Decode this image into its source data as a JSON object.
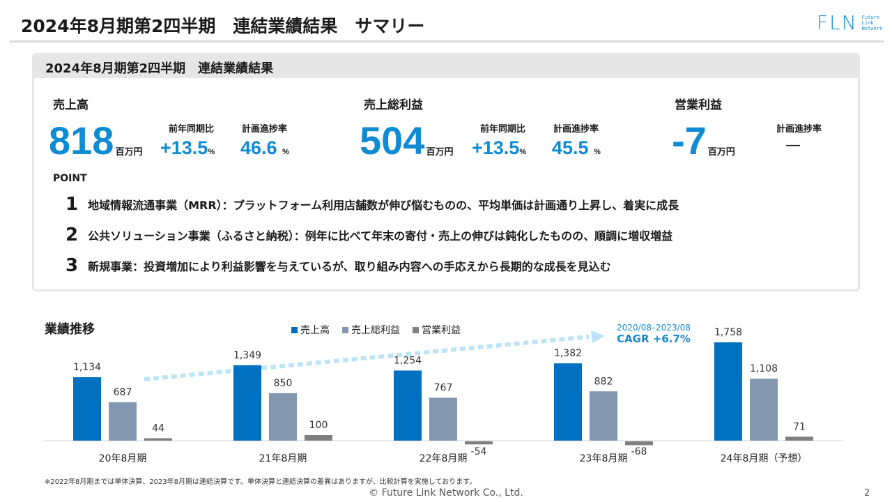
{
  "header": {
    "title": "2024年8月期第2四半期　連結業績結果　サマリー",
    "logo": {
      "mark": "FLN",
      "lines": [
        "Future",
        "Link",
        "Network"
      ]
    }
  },
  "panel": {
    "title": "2024年8月期第2四半期　連結業績結果",
    "metrics": [
      {
        "label": "売上高",
        "value": "818",
        "unit": "百万円",
        "yoy_label": "前年同期比",
        "yoy": "+13.5",
        "yoy_unit": "%",
        "progress_label": "計画進捗率",
        "progress": "46.6",
        "progress_unit": "%"
      },
      {
        "label": "売上総利益",
        "value": "504",
        "unit": "百万円",
        "yoy_label": "前年同期比",
        "yoy": "+13.5",
        "yoy_unit": "%",
        "progress_label": "計画進捗率",
        "progress": "45.5",
        "progress_unit": "%"
      },
      {
        "label": "営業利益",
        "value": "-7",
        "unit": "百万円",
        "progress_label": "計画進捗率",
        "progress": "—"
      }
    ],
    "point_label": "POINT",
    "points": [
      {
        "n": "1",
        "text": "地域情報流通事業（MRR）：プラットフォーム利用店舗数が伸び悩むものの、平均単価は計画通り上昇し、着実に成長"
      },
      {
        "n": "2",
        "text": "公共ソリューション事業（ふるさと納税）：例年に比べて年末の寄付・売上の伸びは鈍化したものの、順調に増収増益"
      },
      {
        "n": "3",
        "text": "新規事業：投資増加により利益影響を与えているが、取り組み内容への手応えから長期的な成長を見込む"
      }
    ]
  },
  "chart_data": {
    "type": "bar",
    "title": "業績推移",
    "categories": [
      "20年8月期",
      "21年8月期",
      "22年8月期",
      "23年8月期",
      "24年8月期（予想）"
    ],
    "series": [
      {
        "name": "売上高",
        "color": "#0070c0",
        "values": [
          1134,
          1349,
          1254,
          1382,
          1758
        ],
        "labels": [
          "1,134",
          "1,349",
          "1,254",
          "1,382",
          "1,758"
        ]
      },
      {
        "name": "売上総利益",
        "color": "#8497b0",
        "values": [
          687,
          850,
          767,
          882,
          1108
        ],
        "labels": [
          "687",
          "850",
          "767",
          "882",
          "1,108"
        ]
      },
      {
        "name": "営業利益",
        "color": "#7f7f7f",
        "values": [
          44,
          100,
          -54,
          -68,
          71
        ],
        "labels": [
          "44",
          "100",
          "-54",
          "-68",
          "71"
        ]
      }
    ],
    "legend": "top",
    "annotation": {
      "period": "2020/08–2023/08",
      "text": "CAGR +6.7%",
      "arrow_color": "#bde3f7"
    }
  },
  "footer": {
    "note": "※2022年8月期までは単体決算、2023年8月期は連結決算です。単体決算と連結決算の差異はありますが、比較計算を実施しております。",
    "copyright": "© Future Link Network Co., Ltd.",
    "page": "2"
  }
}
